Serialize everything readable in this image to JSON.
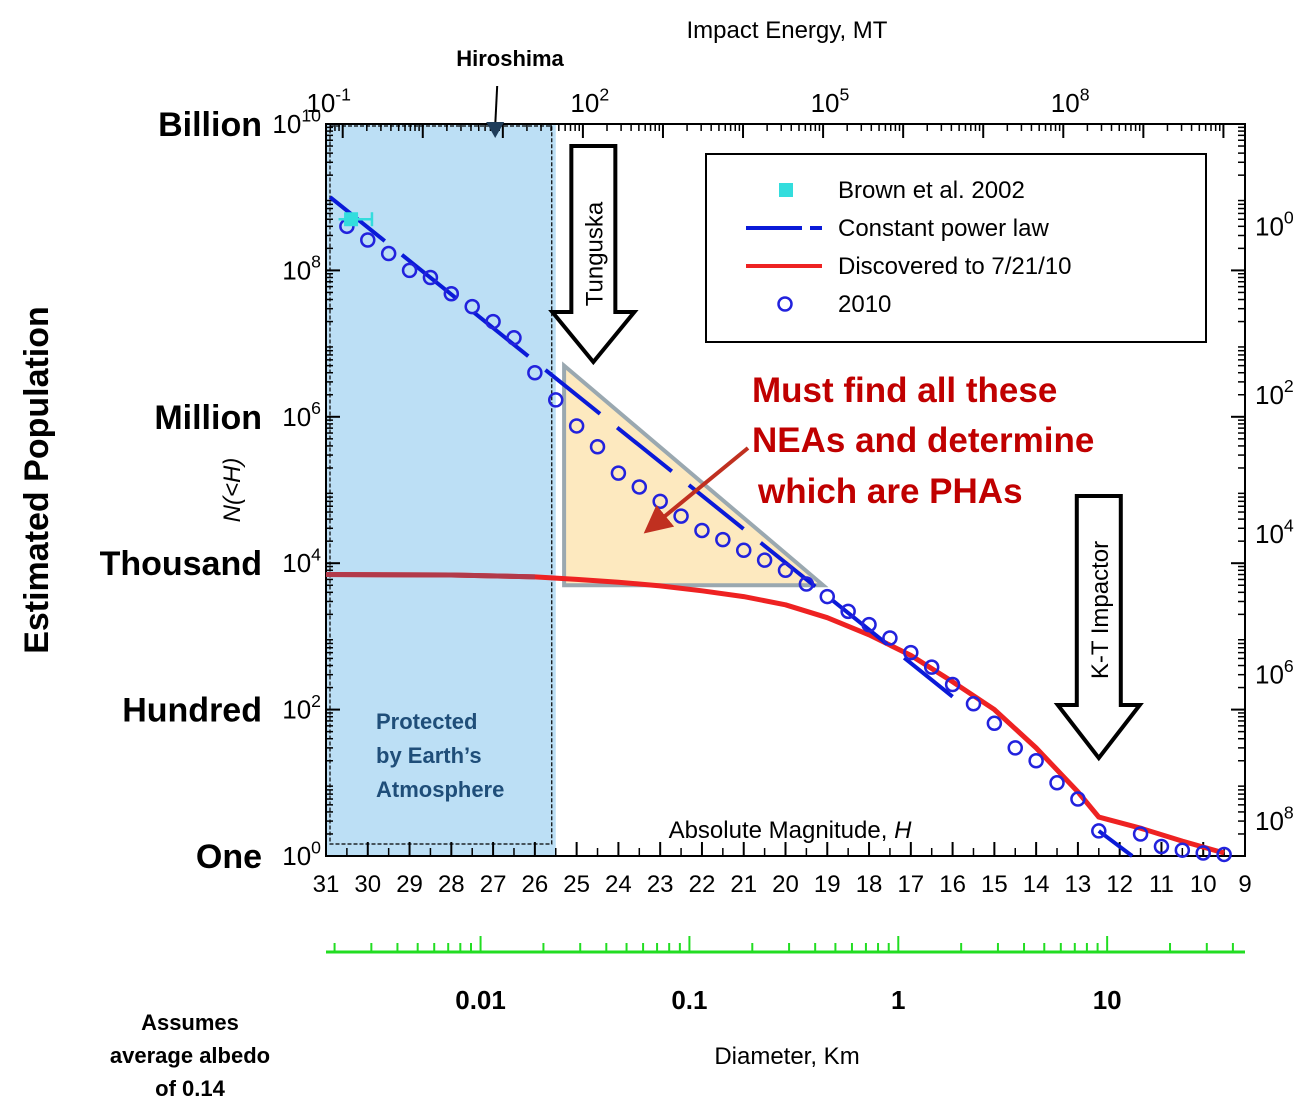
{
  "chart_data": {
    "type": "scatter",
    "xlabel": "Absolute Magnitude, H",
    "ylabel": "N(<H)",
    "side_title": "Estimated Population",
    "x_reversed": true,
    "xlim": [
      31,
      9
    ],
    "ylim": [
      1,
      10000000000
    ],
    "y_scale": "log",
    "grid": false,
    "legend_position": "top-right",
    "x_ticks": [
      "31",
      "30",
      "29",
      "28",
      "27",
      "26",
      "25",
      "24",
      "23",
      "22",
      "21",
      "20",
      "19",
      "18",
      "17",
      "16",
      "15",
      "14",
      "13",
      "12",
      "11",
      "10",
      "9"
    ],
    "y_ticks": [
      {
        "value": 1,
        "base": "10",
        "exp": "0"
      },
      {
        "value": 100,
        "base": "10",
        "exp": "2"
      },
      {
        "value": 10000,
        "base": "10",
        "exp": "4"
      },
      {
        "value": 1000000,
        "base": "10",
        "exp": "6"
      },
      {
        "value": 100000000,
        "base": "10",
        "exp": "8"
      },
      {
        "value": 10000000000,
        "base": "10",
        "exp": "10"
      }
    ],
    "y_words": [
      {
        "value": 1,
        "label": "One"
      },
      {
        "value": 100,
        "label": "Hundred"
      },
      {
        "value": 10000,
        "label": "Thousand"
      },
      {
        "value": 1000000,
        "label": "Million"
      },
      {
        "value": 10000000000,
        "label": "Billion"
      }
    ],
    "top_axis": {
      "label": "Impact Energy, MT",
      "ticks": [
        {
          "H": 30.6,
          "base": "10",
          "exp": "-1"
        },
        {
          "H": 24.35,
          "base": "10",
          "exp": "2"
        },
        {
          "H": 18.6,
          "base": "10",
          "exp": "5"
        },
        {
          "H": 12.85,
          "base": "10",
          "exp": "8"
        }
      ],
      "hiroshima": {
        "label": "Hiroshima",
        "H": 26.95
      }
    },
    "right_axis": {
      "ticks": [
        {
          "value": 400000000,
          "base": "10",
          "exp": "0"
        },
        {
          "value": 2000000,
          "base": "10",
          "exp": "2"
        },
        {
          "value": 25000,
          "base": "10",
          "exp": "4"
        },
        {
          "value": 300,
          "base": "10",
          "exp": "6"
        },
        {
          "value": 3,
          "base": "10",
          "exp": "8"
        }
      ]
    },
    "diameter_axis": {
      "label": "Diameter, Km",
      "ticks": [
        {
          "H": 27.3,
          "label": "0.01"
        },
        {
          "H": 22.3,
          "label": "0.1"
        },
        {
          "H": 17.3,
          "label": "1"
        },
        {
          "H": 12.3,
          "label": "10"
        }
      ],
      "color": "#22dd22"
    },
    "series": [
      {
        "name": "Brown et al. 2002",
        "kind": "marker",
        "color": "#33dddd",
        "points": [
          {
            "x": 30.4,
            "y": 500000000,
            "xerr": [
              30.7,
              29.9
            ]
          }
        ]
      },
      {
        "name": "Constant power law",
        "kind": "dashed-line",
        "color": "#0a1ad8",
        "points": [
          {
            "x": 30.9,
            "y": 1000000000
          },
          {
            "x": 16.0,
            "y": 150
          }
        ]
      },
      {
        "name": "Discovered to 7/21/10",
        "kind": "line",
        "color": "#ee2222",
        "points": [
          {
            "x": 31,
            "y": 7000
          },
          {
            "x": 28,
            "y": 6900
          },
          {
            "x": 26,
            "y": 6500
          },
          {
            "x": 25,
            "y": 6000
          },
          {
            "x": 24,
            "y": 5500
          },
          {
            "x": 23,
            "y": 4900
          },
          {
            "x": 22,
            "y": 4200
          },
          {
            "x": 21,
            "y": 3500
          },
          {
            "x": 20,
            "y": 2700
          },
          {
            "x": 19,
            "y": 1800
          },
          {
            "x": 18,
            "y": 1050
          },
          {
            "x": 17,
            "y": 550
          },
          {
            "x": 16,
            "y": 240
          },
          {
            "x": 15,
            "y": 100
          },
          {
            "x": 14,
            "y": 30
          },
          {
            "x": 13,
            "y": 7.5
          },
          {
            "x": 12.5,
            "y": 3.4
          },
          {
            "x": 11.5,
            "y": 2.4
          },
          {
            "x": 10.5,
            "y": 1.6
          },
          {
            "x": 9.5,
            "y": 1.1
          }
        ]
      },
      {
        "name": "2010",
        "kind": "open-circle",
        "color": "#2222dd",
        "points": [
          {
            "x": 30.5,
            "y": 400000000
          },
          {
            "x": 30.0,
            "y": 260000000
          },
          {
            "x": 29.5,
            "y": 170000000
          },
          {
            "x": 29.0,
            "y": 100000000
          },
          {
            "x": 28.5,
            "y": 80000000
          },
          {
            "x": 28.0,
            "y": 48000000
          },
          {
            "x": 27.5,
            "y": 32000000
          },
          {
            "x": 27.0,
            "y": 20000000
          },
          {
            "x": 26.5,
            "y": 12000000
          },
          {
            "x": 26.0,
            "y": 4000000
          },
          {
            "x": 25.5,
            "y": 1700000
          },
          {
            "x": 25.0,
            "y": 750000
          },
          {
            "x": 24.5,
            "y": 390000
          },
          {
            "x": 24.0,
            "y": 170000
          },
          {
            "x": 23.5,
            "y": 110000
          },
          {
            "x": 23.0,
            "y": 70000
          },
          {
            "x": 22.5,
            "y": 44000
          },
          {
            "x": 22.0,
            "y": 28000
          },
          {
            "x": 21.5,
            "y": 21000
          },
          {
            "x": 21.0,
            "y": 15000
          },
          {
            "x": 20.5,
            "y": 11000
          },
          {
            "x": 20.0,
            "y": 8000
          },
          {
            "x": 19.5,
            "y": 5200
          },
          {
            "x": 19.0,
            "y": 3500
          },
          {
            "x": 18.5,
            "y": 2200
          },
          {
            "x": 18.0,
            "y": 1450
          },
          {
            "x": 17.5,
            "y": 950
          },
          {
            "x": 17.0,
            "y": 600
          },
          {
            "x": 16.5,
            "y": 380
          },
          {
            "x": 16.0,
            "y": 220
          },
          {
            "x": 15.5,
            "y": 120
          },
          {
            "x": 15.0,
            "y": 65
          },
          {
            "x": 14.5,
            "y": 30
          },
          {
            "x": 14.0,
            "y": 20
          },
          {
            "x": 13.5,
            "y": 10
          },
          {
            "x": 13.0,
            "y": 6
          },
          {
            "x": 12.5,
            "y": 2.2
          },
          {
            "x": 11.5,
            "y": 2.0
          },
          {
            "x": 11.0,
            "y": 1.35
          },
          {
            "x": 10.5,
            "y": 1.2
          },
          {
            "x": 10.0,
            "y": 1.1
          },
          {
            "x": 9.5,
            "y": 1.05
          }
        ]
      }
    ],
    "annotations": {
      "protected_text": [
        "Protected",
        "by Earth’s",
        "Atmosphere"
      ],
      "protected_xmax": 25.5,
      "arrow_tunguska": {
        "label": "Tunguska",
        "H": 24.6
      },
      "arrow_kt": {
        "label": "K-T Impactor",
        "H": 12.5
      },
      "callout": [
        "Must find  all these",
        "NEAs and determine",
        "which are PHAs"
      ],
      "callout_color": "#c00000",
      "triangle": {
        "x": [
          25.3,
          19.1
        ],
        "y": [
          5000000,
          5000
        ]
      },
      "albedo_note": [
        "Assumes",
        "average albedo",
        "of 0.14"
      ]
    }
  }
}
